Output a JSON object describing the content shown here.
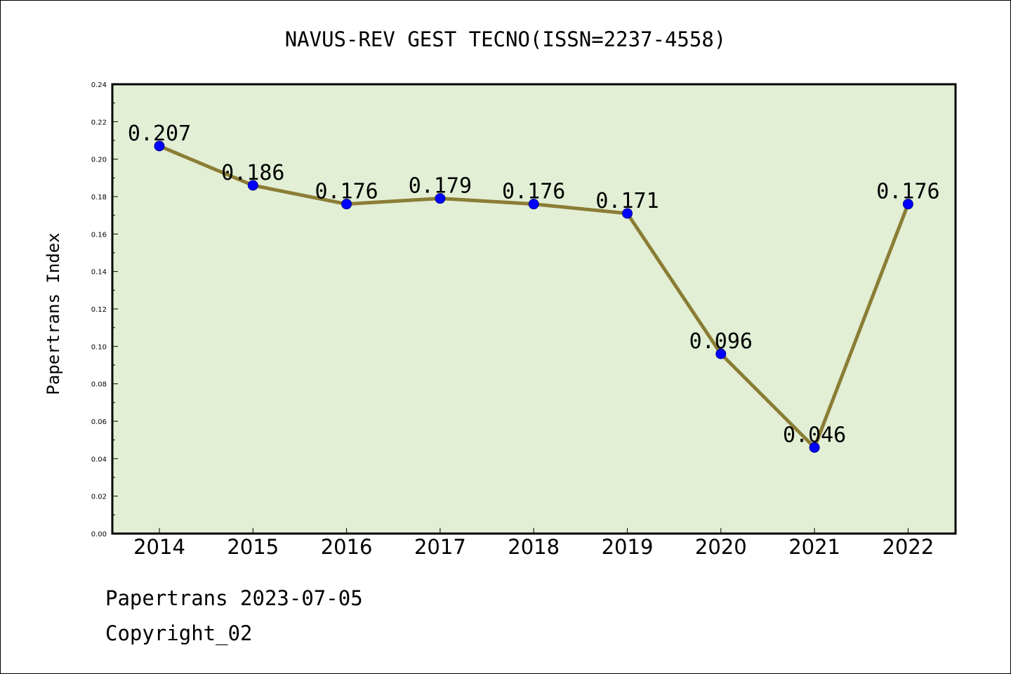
{
  "chart_data": {
    "type": "line",
    "title": "NAVUS-REV GEST TECNO(ISSN=2237-4558)",
    "xlabel": "",
    "ylabel": "Papertrans Index",
    "categories": [
      "2014",
      "2015",
      "2016",
      "2017",
      "2018",
      "2019",
      "2020",
      "2021",
      "2022"
    ],
    "series": [
      {
        "values": [
          0.207,
          0.186,
          0.176,
          0.179,
          0.176,
          0.171,
          0.096,
          0.046,
          0.176
        ],
        "labels": [
          "0.207",
          "0.186",
          "0.176",
          "0.179",
          "0.176",
          "0.171",
          "0.096",
          "0.046",
          "0.176"
        ]
      }
    ],
    "ylim": [
      0,
      0.24
    ],
    "yticks": [
      "0.00",
      "0.02",
      "0.04",
      "0.06",
      "0.08",
      "0.10",
      "0.12",
      "0.14",
      "0.16",
      "0.18",
      "0.20",
      "0.22",
      "0.24"
    ],
    "grid": false,
    "legend": "none"
  },
  "footer": {
    "line1": "Papertrans 2023-07-05",
    "line2": "Copyright_02"
  },
  "colors": {
    "plot_background": "#e2efd5",
    "line": "#8b7d35",
    "marker_fill": "#0000ff",
    "marker_edge": "#00008b",
    "axes": "#000000"
  }
}
